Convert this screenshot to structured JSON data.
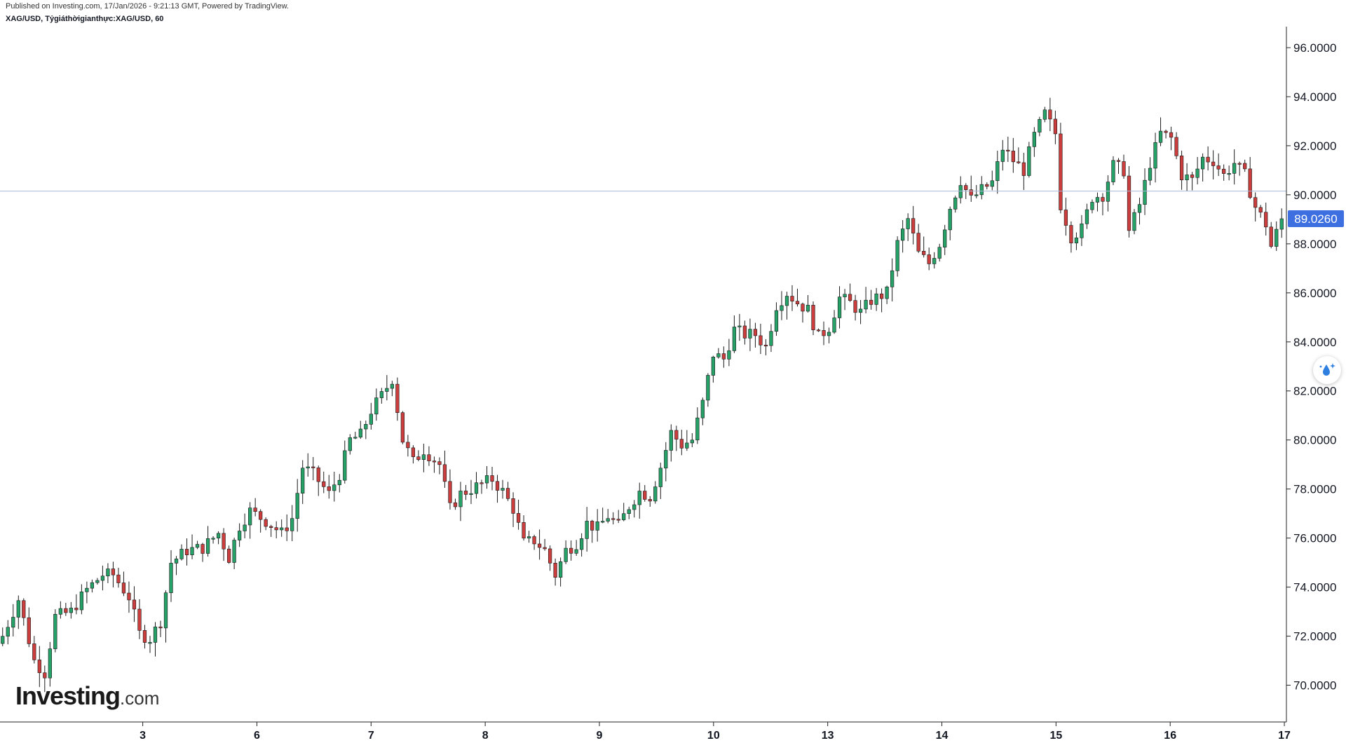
{
  "header": {
    "published": "Published on Investing.com, 17/Jan/2026 - 9:21:13 GMT, Powered by TradingView.",
    "symbol": "XAG/USD, Tỷgiáthờigianthực:XAG/USD, 60"
  },
  "logo": {
    "main": "Investing",
    "suffix": ".com"
  },
  "colors": {
    "up": "#26a269",
    "down": "#cc3d3d",
    "price_line": "#a9b8d8",
    "price_label_bg": "#3d6fe0"
  },
  "chart_data": {
    "type": "candlestick",
    "interval_minutes": 60,
    "ylim": [
      68.5,
      96.8
    ],
    "yticks": [
      "96.0000",
      "94.0000",
      "92.0000",
      "90.0000",
      "88.0000",
      "86.0000",
      "84.0000",
      "82.0000",
      "80.0000",
      "78.0000",
      "76.0000",
      "74.0000",
      "72.0000",
      "70.0000"
    ],
    "xticks": [
      {
        "label": "3",
        "at": 27
      },
      {
        "label": "6",
        "at": 49
      },
      {
        "label": "7",
        "at": 71
      },
      {
        "label": "8",
        "at": 93
      },
      {
        "label": "9",
        "at": 115
      },
      {
        "label": "10",
        "at": 137
      },
      {
        "label": "13",
        "at": 159
      },
      {
        "label": "14",
        "at": 181
      },
      {
        "label": "15",
        "at": 203
      },
      {
        "label": "16",
        "at": 225
      },
      {
        "label": "17",
        "at": 247
      }
    ],
    "current_price": "89.0260",
    "current_price_value": 89.026,
    "price_line_value": 90.15,
    "close_anchors": [
      [
        0,
        72.0
      ],
      [
        3,
        73.5
      ],
      [
        6,
        71.0
      ],
      [
        8,
        70.5
      ],
      [
        10,
        72.8
      ],
      [
        13,
        73.0
      ],
      [
        16,
        73.9
      ],
      [
        19,
        74.5
      ],
      [
        21,
        74.5
      ],
      [
        24,
        73.6
      ],
      [
        26,
        72.1
      ],
      [
        28,
        71.9
      ],
      [
        30,
        72.6
      ],
      [
        32,
        75.0
      ],
      [
        35,
        75.5
      ],
      [
        38,
        75.6
      ],
      [
        41,
        76.2
      ],
      [
        43,
        75.2
      ],
      [
        45,
        76.5
      ],
      [
        47,
        77.1
      ],
      [
        50,
        76.7
      ],
      [
        53,
        76.2
      ],
      [
        55,
        76.8
      ],
      [
        57,
        78.9
      ],
      [
        59,
        78.6
      ],
      [
        62,
        77.8
      ],
      [
        64,
        78.6
      ],
      [
        66,
        80.0
      ],
      [
        68,
        80.2
      ],
      [
        70,
        81.2
      ],
      [
        72,
        81.8
      ],
      [
        74,
        82.5
      ],
      [
        76,
        80.0
      ],
      [
        78,
        79.1
      ],
      [
        80,
        79.6
      ],
      [
        83,
        79.0
      ],
      [
        85,
        77.2
      ],
      [
        87,
        77.8
      ],
      [
        89,
        78.0
      ],
      [
        91,
        78.2
      ],
      [
        93,
        78.4
      ],
      [
        95,
        77.9
      ],
      [
        97,
        77.2
      ],
      [
        99,
        75.8
      ],
      [
        101,
        75.9
      ],
      [
        103,
        75.5
      ],
      [
        105,
        74.5
      ],
      [
        107,
        75.5
      ],
      [
        109,
        75.8
      ],
      [
        111,
        76.6
      ],
      [
        113,
        76.4
      ],
      [
        115,
        76.9
      ],
      [
        117,
        76.5
      ],
      [
        119,
        77.3
      ],
      [
        121,
        77.9
      ],
      [
        123,
        77.7
      ],
      [
        125,
        78.9
      ],
      [
        127,
        80.3
      ],
      [
        129,
        79.8
      ],
      [
        131,
        80.0
      ],
      [
        133,
        81.5
      ],
      [
        135,
        83.5
      ],
      [
        137,
        83.3
      ],
      [
        139,
        84.5
      ],
      [
        141,
        84.3
      ],
      [
        143,
        84.3
      ],
      [
        145,
        83.8
      ],
      [
        147,
        85.5
      ],
      [
        149,
        86.0
      ],
      [
        151,
        85.6
      ],
      [
        153,
        85.3
      ],
      [
        155,
        84.2
      ],
      [
        157,
        84.6
      ],
      [
        159,
        85.8
      ],
      [
        161,
        85.6
      ],
      [
        163,
        85.2
      ],
      [
        165,
        85.7
      ],
      [
        168,
        86.0
      ],
      [
        170,
        88.0
      ],
      [
        172,
        89.0
      ],
      [
        174,
        87.6
      ],
      [
        176,
        87.2
      ],
      [
        178,
        88.0
      ],
      [
        180,
        89.5
      ],
      [
        182,
        90.6
      ],
      [
        184,
        89.8
      ],
      [
        186,
        90.2
      ],
      [
        188,
        90.5
      ],
      [
        190,
        91.9
      ],
      [
        192,
        91.4
      ],
      [
        194,
        91.0
      ],
      [
        196,
        92.4
      ],
      [
        198,
        93.3
      ],
      [
        200,
        92.5
      ],
      [
        201,
        89.6
      ],
      [
        203,
        88.3
      ],
      [
        205,
        88.6
      ],
      [
        207,
        89.9
      ],
      [
        209,
        90.0
      ],
      [
        211,
        91.2
      ],
      [
        213,
        91.0
      ],
      [
        214,
        88.5
      ],
      [
        216,
        89.6
      ],
      [
        218,
        91.3
      ],
      [
        220,
        92.5
      ],
      [
        222,
        92.3
      ],
      [
        224,
        90.8
      ],
      [
        226,
        90.6
      ],
      [
        228,
        91.5
      ],
      [
        230,
        91.4
      ],
      [
        232,
        90.8
      ],
      [
        234,
        91.3
      ],
      [
        236,
        90.8
      ],
      [
        238,
        89.5
      ],
      [
        240,
        88.8
      ],
      [
        241,
        87.9
      ],
      [
        243,
        89.0
      ]
    ],
    "candle_count": 244
  }
}
